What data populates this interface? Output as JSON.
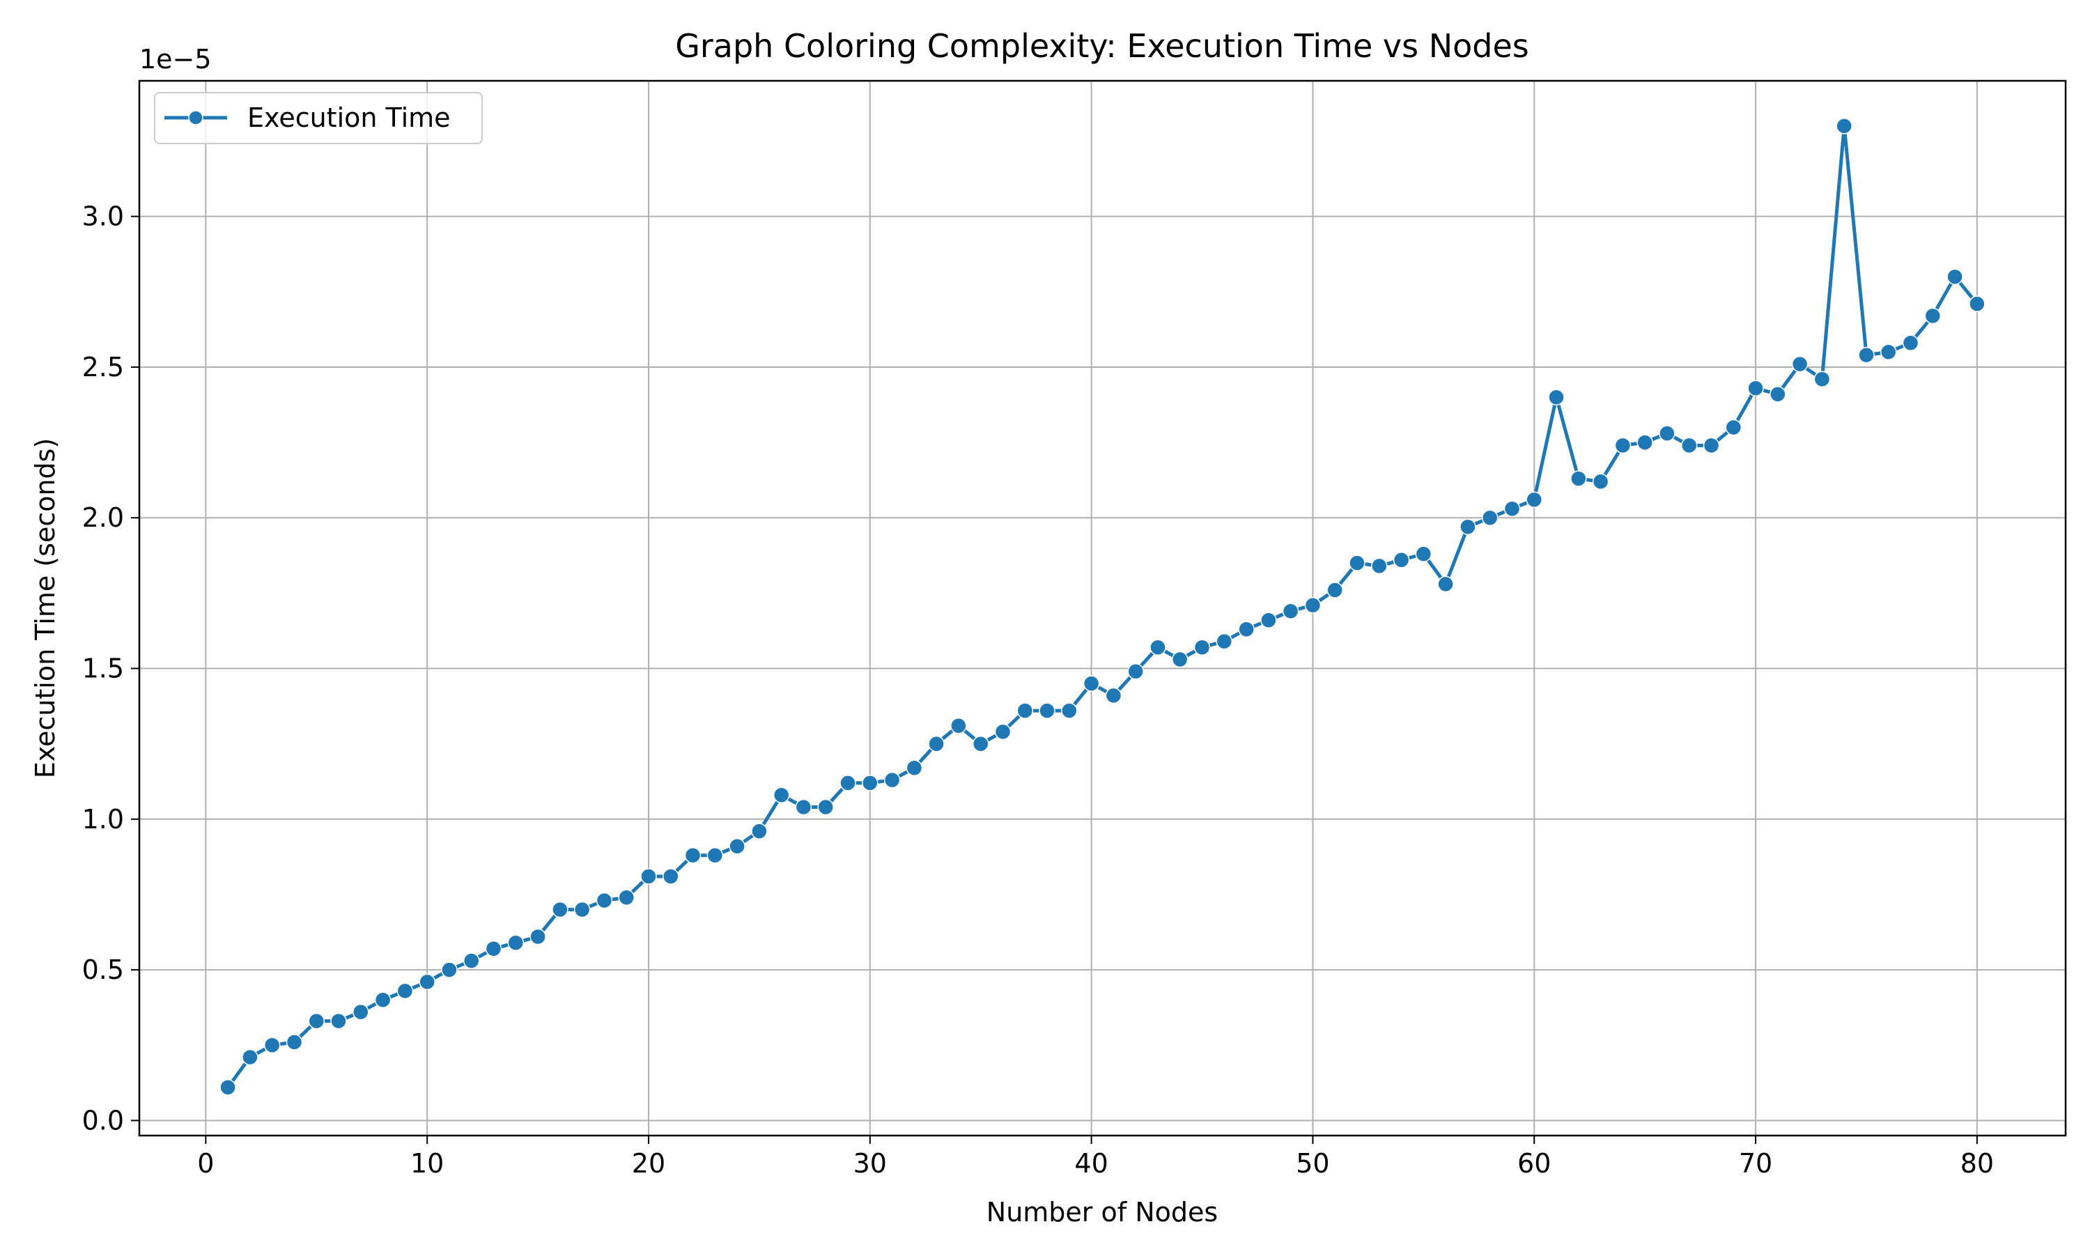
{
  "chart_data": {
    "type": "line",
    "title": "Graph Coloring Complexity: Execution Time vs Nodes",
    "xlabel": "Number of Nodes",
    "ylabel": "Execution Time (seconds)",
    "y_offset_label": "1e−5",
    "xlim": [
      -3,
      84
    ],
    "ylim": [
      -0.05,
      3.45
    ],
    "xticks": [
      0,
      10,
      20,
      30,
      40,
      50,
      60,
      70,
      80
    ],
    "yticks": [
      0.0,
      0.5,
      1.0,
      1.5,
      2.0,
      2.5,
      3.0
    ],
    "xtick_labels": [
      "0",
      "10",
      "20",
      "30",
      "40",
      "50",
      "60",
      "70",
      "80"
    ],
    "ytick_labels": [
      "0.0",
      "0.5",
      "1.0",
      "1.5",
      "2.0",
      "2.5",
      "3.0"
    ],
    "grid": true,
    "legend_position": "top-left",
    "series": [
      {
        "name": "Execution Time",
        "color": "#1f77b4",
        "marker": "circle",
        "x": [
          1,
          2,
          3,
          4,
          5,
          6,
          7,
          8,
          9,
          10,
          11,
          12,
          13,
          14,
          15,
          16,
          17,
          18,
          19,
          20,
          21,
          22,
          23,
          24,
          25,
          26,
          27,
          28,
          29,
          30,
          31,
          32,
          33,
          34,
          35,
          36,
          37,
          38,
          39,
          40,
          41,
          42,
          43,
          44,
          45,
          46,
          47,
          48,
          49,
          50,
          51,
          52,
          53,
          54,
          55,
          56,
          57,
          58,
          59,
          60,
          61,
          62,
          63,
          64,
          65,
          66,
          67,
          68,
          69,
          70,
          71,
          72,
          73,
          74,
          75,
          76,
          77,
          78,
          79,
          80
        ],
        "values": [
          0.11,
          0.21,
          0.25,
          0.26,
          0.33,
          0.33,
          0.36,
          0.4,
          0.43,
          0.46,
          0.5,
          0.53,
          0.57,
          0.59,
          0.61,
          0.7,
          0.7,
          0.73,
          0.74,
          0.81,
          0.81,
          0.88,
          0.88,
          0.91,
          0.96,
          1.08,
          1.04,
          1.04,
          1.12,
          1.12,
          1.13,
          1.17,
          1.25,
          1.31,
          1.25,
          1.29,
          1.36,
          1.36,
          1.36,
          1.45,
          1.41,
          1.49,
          1.57,
          1.53,
          1.57,
          1.59,
          1.63,
          1.66,
          1.69,
          1.71,
          1.76,
          1.85,
          1.84,
          1.86,
          1.88,
          1.78,
          1.97,
          2.0,
          2.03,
          2.06,
          2.4,
          2.13,
          2.12,
          2.24,
          2.25,
          2.28,
          2.24,
          2.24,
          2.3,
          2.43,
          2.41,
          2.51,
          2.46,
          3.3,
          2.54,
          2.55,
          2.58,
          2.67,
          2.8,
          2.71
        ]
      }
    ]
  }
}
